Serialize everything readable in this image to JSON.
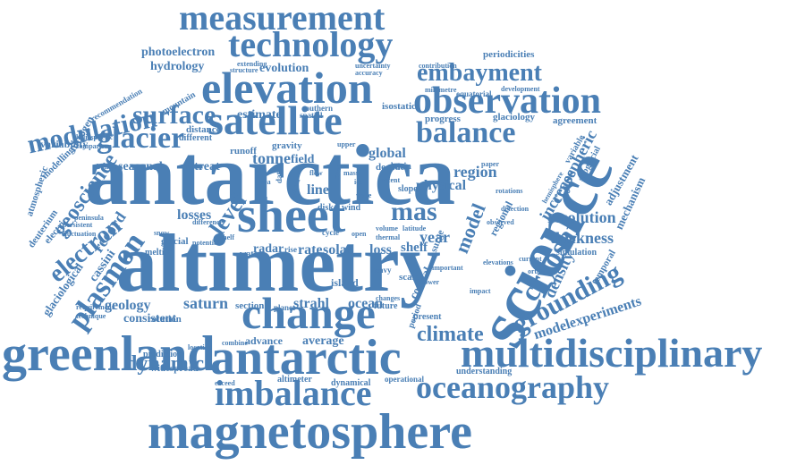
{
  "word_cloud": {
    "color": "#4a7fb5",
    "words": [
      "antarctica",
      "altimetry",
      "science",
      "sheet",
      "greenland",
      "change",
      "antarctic",
      "magnetosphere",
      "multidisciplinary",
      "elevation",
      "satellite",
      "observation",
      "technology",
      "measurement",
      "imbalance",
      "oceanography",
      "glacier",
      "balance",
      "modulation",
      "plasmon",
      "cryosat",
      "grounding",
      "embayment",
      "surface",
      "electron",
      "mas",
      "climate",
      "dynamic",
      "level",
      "geoscience",
      "model",
      "resolution",
      "thickness",
      "density",
      "modelexperiments",
      "increase",
      "cryospheric",
      "region",
      "record",
      "tonne",
      "saturn",
      "geology",
      "cassini",
      "strahl",
      "ocean",
      "losses",
      "year",
      "physical",
      "global",
      "field",
      "rate",
      "solar",
      "radar",
      "line",
      "shelf",
      "loss",
      "retreat",
      "seasonal",
      "estimate",
      "hydrology",
      "evolution",
      "photoelectron",
      "distance",
      "runoff",
      "gravity",
      "decade",
      "glaciology",
      "agreement",
      "progress",
      "periodicities",
      "isostatic",
      "adjustment",
      "mechanism",
      "average",
      "advance",
      "consistent",
      "variability",
      "modelling",
      "deuterium",
      "atmospheric",
      "glaciological",
      "regional",
      "coastal",
      "temporal",
      "period",
      "surge",
      "glacial",
      "island",
      "section",
      "rotation",
      "prediction",
      "widespread",
      "understanding",
      "dynamical",
      "altimeter",
      "operational",
      "future",
      "present",
      "simulation",
      "different",
      "mountain",
      "recommendation",
      "nitrogen",
      "heliospheric",
      "comparison",
      "electric",
      "basin",
      "spatial",
      "southern",
      "upper",
      "equatorial",
      "development",
      "millimetre",
      "uncertainty",
      "contribution",
      "accuracy",
      "structure",
      "extending",
      "subglacial",
      "variable",
      "hemisphere",
      "disk",
      "wind",
      "earth",
      "water",
      "melting",
      "slope",
      "thermal",
      "volume",
      "latitude",
      "rise",
      "planet",
      "scale",
      "heavy",
      "cycle",
      "open",
      "recent",
      "data",
      "time",
      "sea",
      "ice",
      "wave",
      "mass",
      "flow",
      "shelf",
      "snow",
      "location",
      "combine",
      "exceed",
      "technique",
      "requirement",
      "fluctuation",
      "persistent",
      "peninsula",
      "difference",
      "potential",
      "building",
      "observed",
      "changes",
      "lower",
      "important",
      "impact",
      "paper",
      "elevations",
      "rotations",
      "detection",
      "current",
      "orbit",
      "magnetic",
      "trend",
      "loading"
    ]
  }
}
